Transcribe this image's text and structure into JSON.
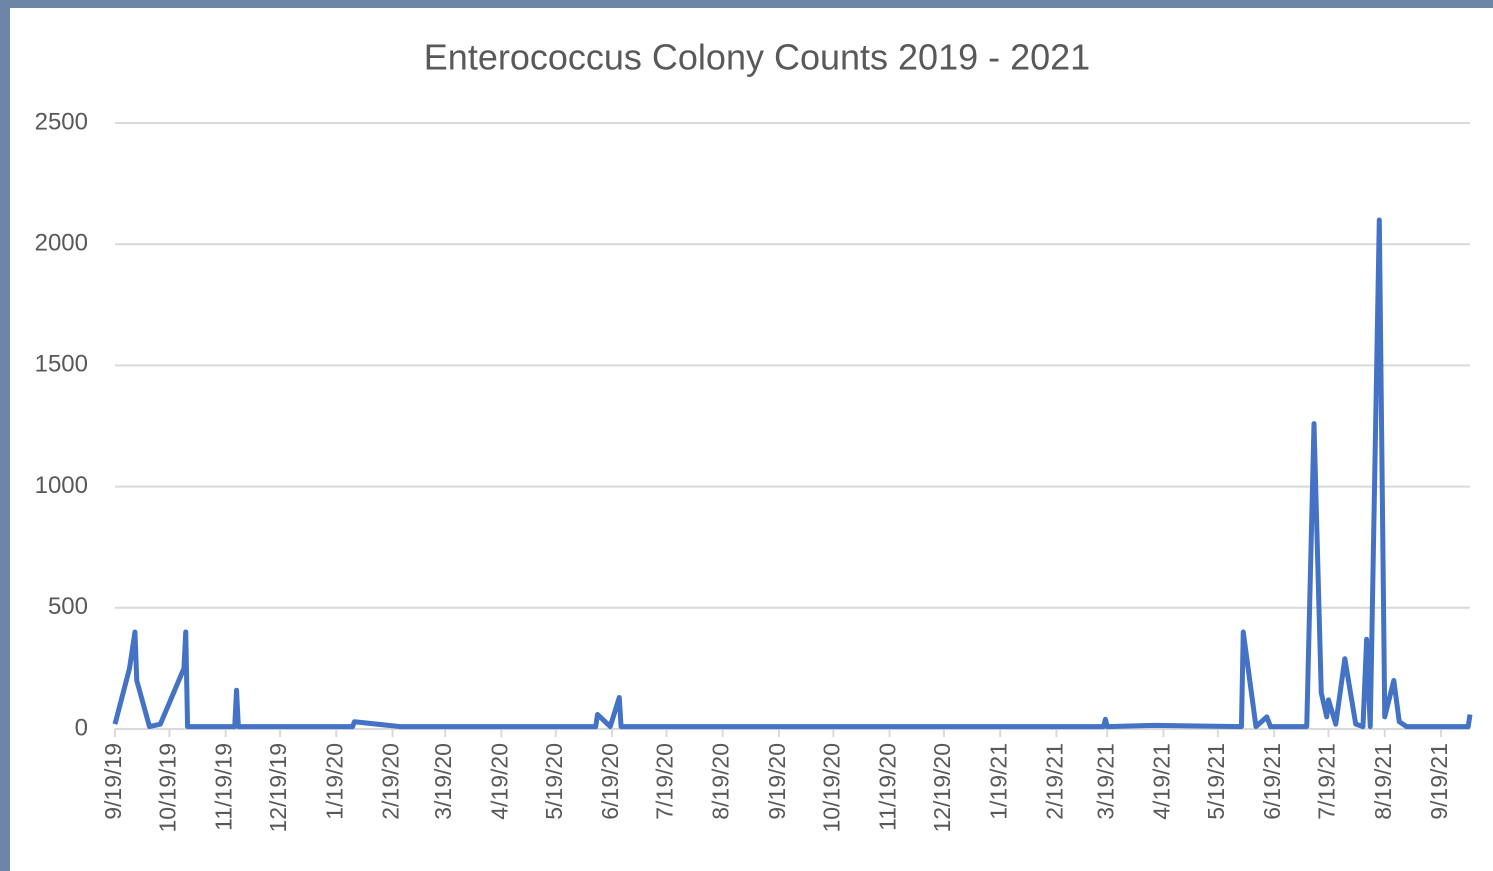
{
  "chart_data": {
    "type": "line",
    "title": "Enterococcus Colony Counts 2019 - 2021",
    "x": [
      "2019-09-19",
      "2019-09-27",
      "2019-09-30",
      "2019-10-01",
      "2019-10-08",
      "2019-10-14",
      "2019-10-27",
      "2019-10-28",
      "2019-10-29",
      "2019-11-24",
      "2019-11-25",
      "2019-11-26",
      "2020-01-28",
      "2020-01-29",
      "2020-02-23",
      "2020-06-10",
      "2020-06-11",
      "2020-06-18",
      "2020-06-23",
      "2020-06-24",
      "2021-03-17",
      "2021-03-18",
      "2021-03-19",
      "2021-04-14",
      "2021-06-01",
      "2021-06-02",
      "2021-06-09",
      "2021-06-15",
      "2021-06-17",
      "2021-07-07",
      "2021-07-11",
      "2021-07-15",
      "2021-07-18",
      "2021-07-19",
      "2021-07-23",
      "2021-07-28",
      "2021-07-30",
      "2021-08-03",
      "2021-08-07",
      "2021-08-09",
      "2021-08-11",
      "2021-08-16",
      "2021-08-19",
      "2021-08-24",
      "2021-08-27",
      "2021-08-31",
      "2021-10-04",
      "2021-10-05"
    ],
    "series": [
      {
        "name": "Enterococcus",
        "color": "#4472c4",
        "values": [
          20,
          250,
          400,
          200,
          10,
          20,
          250,
          400,
          10,
          10,
          160,
          10,
          10,
          30,
          10,
          10,
          60,
          10,
          130,
          10,
          10,
          40,
          10,
          15,
          10,
          400,
          10,
          50,
          10,
          10,
          1260,
          150,
          50,
          120,
          20,
          290,
          200,
          20,
          10,
          370,
          10,
          2100,
          50,
          200,
          30,
          10,
          10,
          60
        ]
      }
    ],
    "xlim": [
      "2019-09-19",
      "2021-10-05"
    ],
    "xticks": [
      {
        "value": "2019-09-19",
        "label": "9/19/19"
      },
      {
        "value": "2019-10-19",
        "label": "10/19/19"
      },
      {
        "value": "2019-11-19",
        "label": "11/19/19"
      },
      {
        "value": "2019-12-19",
        "label": "12/19/19"
      },
      {
        "value": "2020-01-19",
        "label": "1/19/20"
      },
      {
        "value": "2020-02-19",
        "label": "2/19/20"
      },
      {
        "value": "2020-03-19",
        "label": "3/19/20"
      },
      {
        "value": "2020-04-19",
        "label": "4/19/20"
      },
      {
        "value": "2020-05-19",
        "label": "5/19/20"
      },
      {
        "value": "2020-06-19",
        "label": "6/19/20"
      },
      {
        "value": "2020-07-19",
        "label": "7/19/20"
      },
      {
        "value": "2020-08-19",
        "label": "8/19/20"
      },
      {
        "value": "2020-09-19",
        "label": "9/19/20"
      },
      {
        "value": "2020-10-19",
        "label": "10/19/20"
      },
      {
        "value": "2020-11-19",
        "label": "11/19/20"
      },
      {
        "value": "2020-12-19",
        "label": "12/19/20"
      },
      {
        "value": "2021-01-19",
        "label": "1/19/21"
      },
      {
        "value": "2021-02-19",
        "label": "2/19/21"
      },
      {
        "value": "2021-03-19",
        "label": "3/19/21"
      },
      {
        "value": "2021-04-19",
        "label": "4/19/21"
      },
      {
        "value": "2021-05-19",
        "label": "5/19/21"
      },
      {
        "value": "2021-06-19",
        "label": "6/19/21"
      },
      {
        "value": "2021-07-19",
        "label": "7/19/21"
      },
      {
        "value": "2021-08-19",
        "label": "8/19/21"
      },
      {
        "value": "2021-09-19",
        "label": "9/19/21"
      }
    ],
    "ylim": [
      0,
      2500
    ],
    "yticks": [
      0,
      500,
      1000,
      1500,
      2000,
      2500
    ],
    "grid": true
  }
}
